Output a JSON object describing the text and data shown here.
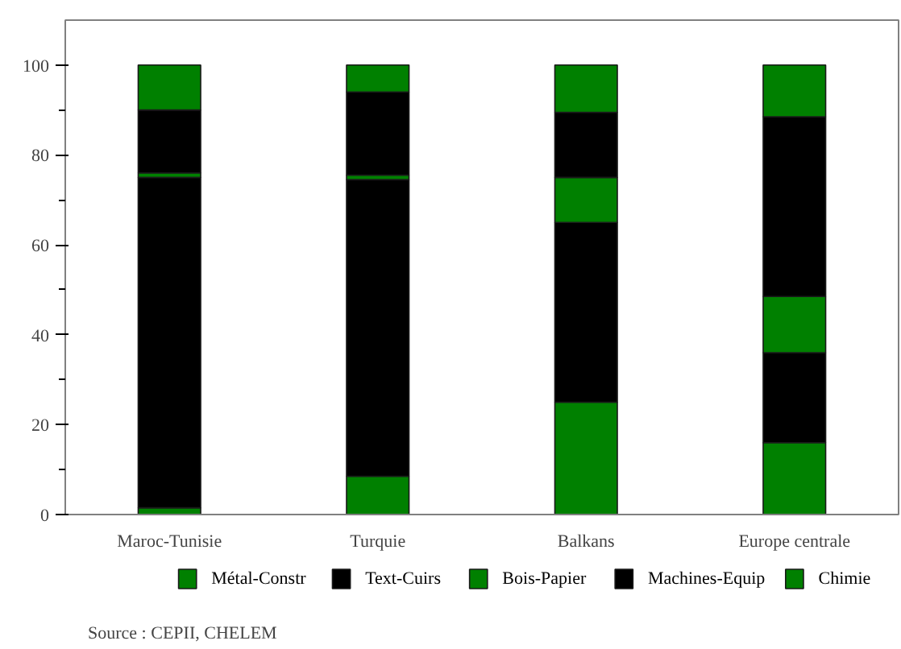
{
  "chart_data": {
    "type": "bar",
    "stacked": true,
    "categories": [
      "Maroc-Tunisie",
      "Turquie",
      "Balkans",
      "Europe centrale"
    ],
    "series": [
      {
        "name": "Métal-Constr",
        "color": "#008000",
        "values": [
          1.5,
          8.5,
          25,
          16
        ]
      },
      {
        "name": "Text-Cuirs",
        "color": "#000000",
        "values": [
          73.5,
          66,
          40,
          20
        ]
      },
      {
        "name": "Bois-Papier",
        "color": "#008000",
        "values": [
          1,
          1,
          10,
          12.5
        ]
      },
      {
        "name": "Machines-Equip",
        "color": "#000000",
        "values": [
          14,
          18.5,
          14.5,
          40
        ]
      },
      {
        "name": "Chimie",
        "color": "#008000",
        "values": [
          10,
          6,
          10.5,
          11.5
        ]
      }
    ],
    "ylim": [
      0,
      110
    ],
    "yticks": [
      0,
      20,
      40,
      60,
      80,
      100
    ],
    "grid": false,
    "legend": "bottom",
    "annotations": [
      "Source : CEPII, CHELEM"
    ]
  }
}
